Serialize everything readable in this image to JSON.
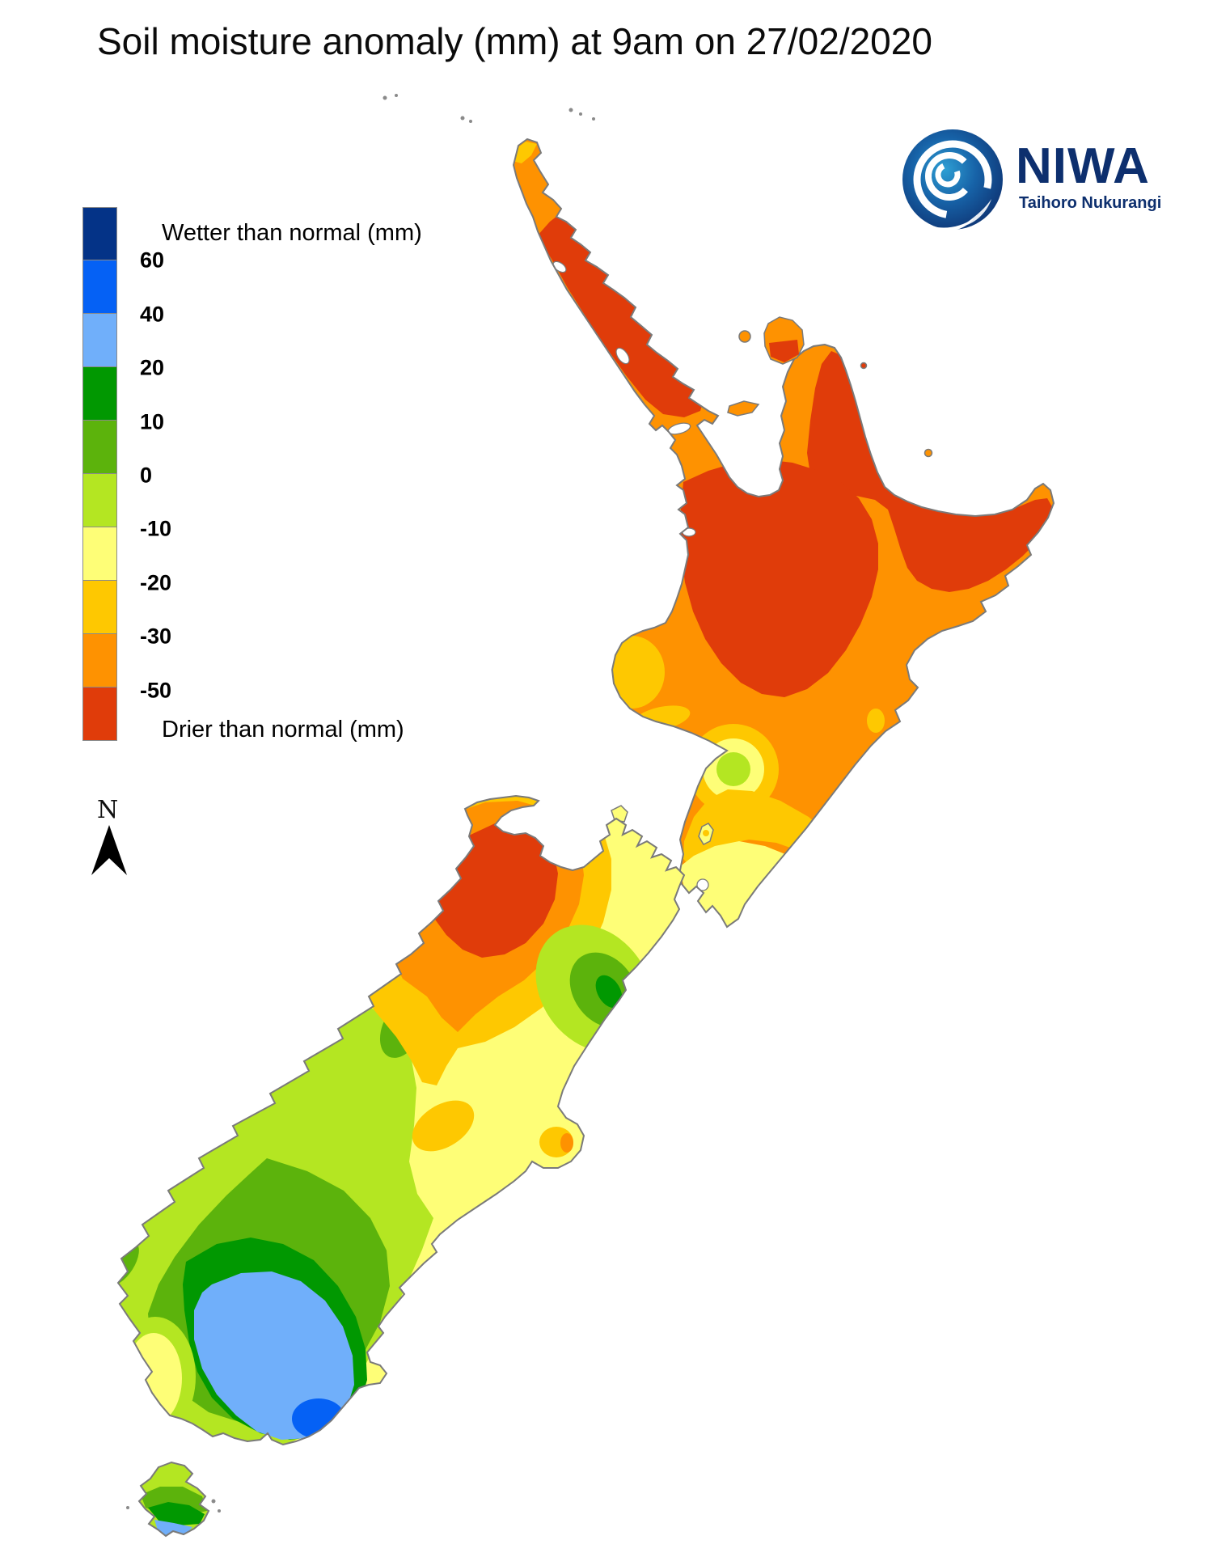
{
  "title": {
    "text": "Soil moisture anomaly (mm) at 9am on 27/02/2020"
  },
  "logo": {
    "name": "NIWA",
    "subtitle": "Taihoro Nukurangi",
    "brand_color": "#0d2f6e"
  },
  "compass": {
    "label": "N"
  },
  "legend": {
    "wetter_label": "Wetter than normal (mm)",
    "drier_label": "Drier than normal (mm)",
    "bands": [
      {
        "color": "#043387",
        "label": "60",
        "meaning": "wetter than 60"
      },
      {
        "color": "#0561f5",
        "label": "40",
        "meaning": "40 to 60"
      },
      {
        "color": "#70affa",
        "label": "20",
        "meaning": "20 to 40"
      },
      {
        "color": "#019801",
        "label": "10",
        "meaning": "10 to 20"
      },
      {
        "color": "#5cb30c",
        "label": "0",
        "meaning": "0 to 10"
      },
      {
        "color": "#b4e622",
        "label": "-10",
        "meaning": "-10 to 0"
      },
      {
        "color": "#fefe77",
        "label": "-20",
        "meaning": "-20 to -10"
      },
      {
        "color": "#fec801",
        "label": "-30",
        "meaning": "-30 to -20"
      },
      {
        "color": "#fe9201",
        "label": "-50",
        "meaning": "-50 to -30"
      },
      {
        "color": "#e03c0a",
        "label": "",
        "meaning": "drier than -50"
      }
    ]
  },
  "map": {
    "region": "New Zealand",
    "coast_color": "#7a7a7a",
    "dominant_anomalies": {
      "northland": "-50 or drier",
      "central_north_island": "-50 or drier",
      "east_cape_gisborne": "-50 or drier",
      "most_north_island": "-30 to -50",
      "wellington_tip": "-10 to -20",
      "nelson_buller": "-50 or drier",
      "canterbury": "-10 to -20",
      "west_coast_otago": "0 to 10",
      "southland_core": "20 to 40",
      "south_otago_coast_spot": "40 to 60"
    }
  }
}
